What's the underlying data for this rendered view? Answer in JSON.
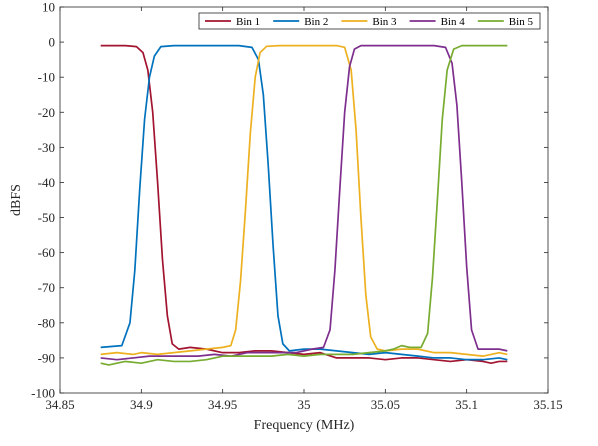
{
  "chart_data": {
    "type": "line",
    "xlabel": "Frequency (MHz)",
    "ylabel": "dBFS",
    "xlim": [
      34.85,
      35.15
    ],
    "ylim": [
      -100,
      10
    ],
    "xticks": [
      34.85,
      34.9,
      34.95,
      35,
      35.05,
      35.1,
      35.15
    ],
    "xtick_labels": [
      "34.85",
      "34.9",
      "34.95",
      "35",
      "35.05",
      "35.1",
      "35.15"
    ],
    "yticks": [
      -100,
      -90,
      -80,
      -70,
      -60,
      -50,
      -40,
      -30,
      -20,
      -10,
      0,
      10
    ],
    "ytick_labels": [
      "-100",
      "-90",
      "-80",
      "-70",
      "-60",
      "-50",
      "-40",
      "-30",
      "-20",
      "-10",
      "0",
      "10"
    ],
    "grid": false,
    "legend": {
      "placement": "top-right",
      "orientation": "horizontal"
    },
    "series": [
      {
        "name": "Bin 1",
        "color": "#A2142F",
        "points": [
          [
            34.875,
            -1
          ],
          [
            34.89,
            -1
          ],
          [
            34.897,
            -1.3
          ],
          [
            34.901,
            -3
          ],
          [
            34.904,
            -8
          ],
          [
            34.907,
            -20
          ],
          [
            34.91,
            -40
          ],
          [
            34.913,
            -62
          ],
          [
            34.916,
            -78
          ],
          [
            34.919,
            -86
          ],
          [
            34.923,
            -87.5
          ],
          [
            34.93,
            -87
          ],
          [
            34.94,
            -87.5
          ],
          [
            34.95,
            -88.5
          ],
          [
            34.96,
            -88.5
          ],
          [
            34.97,
            -88
          ],
          [
            34.98,
            -88
          ],
          [
            34.99,
            -88.5
          ],
          [
            35.0,
            -89
          ],
          [
            35.01,
            -88.5
          ],
          [
            35.02,
            -90
          ],
          [
            35.03,
            -90
          ],
          [
            35.04,
            -90
          ],
          [
            35.05,
            -90.5
          ],
          [
            35.06,
            -90
          ],
          [
            35.07,
            -90
          ],
          [
            35.08,
            -90.5
          ],
          [
            35.09,
            -91
          ],
          [
            35.1,
            -90.5
          ],
          [
            35.11,
            -91
          ],
          [
            35.115,
            -91.5
          ],
          [
            35.12,
            -91
          ],
          [
            35.125,
            -91
          ]
        ]
      },
      {
        "name": "Bin 2",
        "color": "#0072BD",
        "points": [
          [
            34.875,
            -87
          ],
          [
            34.888,
            -86.5
          ],
          [
            34.893,
            -80
          ],
          [
            34.896,
            -65
          ],
          [
            34.899,
            -42
          ],
          [
            34.902,
            -22
          ],
          [
            34.905,
            -10
          ],
          [
            34.908,
            -4
          ],
          [
            34.912,
            -1.3
          ],
          [
            34.92,
            -1
          ],
          [
            34.96,
            -1
          ],
          [
            34.968,
            -1.5
          ],
          [
            34.972,
            -5
          ],
          [
            34.975,
            -15
          ],
          [
            34.978,
            -35
          ],
          [
            34.981,
            -58
          ],
          [
            34.984,
            -78
          ],
          [
            34.987,
            -86
          ],
          [
            34.991,
            -88
          ],
          [
            35.0,
            -87.5
          ],
          [
            35.01,
            -87.5
          ],
          [
            35.02,
            -88
          ],
          [
            35.03,
            -88.5
          ],
          [
            35.04,
            -89
          ],
          [
            35.05,
            -88.5
          ],
          [
            35.06,
            -89
          ],
          [
            35.07,
            -89.5
          ],
          [
            35.08,
            -90
          ],
          [
            35.09,
            -90
          ],
          [
            35.1,
            -90.5
          ],
          [
            35.11,
            -90.5
          ],
          [
            35.12,
            -90
          ],
          [
            35.125,
            -90.5
          ]
        ]
      },
      {
        "name": "Bin 3",
        "color": "#EDB120",
        "points": [
          [
            34.875,
            -89
          ],
          [
            34.885,
            -88.5
          ],
          [
            34.895,
            -89
          ],
          [
            34.9,
            -88.5
          ],
          [
            34.91,
            -89
          ],
          [
            34.92,
            -88.5
          ],
          [
            34.93,
            -88
          ],
          [
            34.94,
            -87.5
          ],
          [
            34.95,
            -87
          ],
          [
            34.955,
            -86.5
          ],
          [
            34.958,
            -82
          ],
          [
            34.961,
            -68
          ],
          [
            34.964,
            -48
          ],
          [
            34.967,
            -26
          ],
          [
            34.97,
            -10
          ],
          [
            34.973,
            -3
          ],
          [
            34.977,
            -1.2
          ],
          [
            34.985,
            -1
          ],
          [
            35.02,
            -1
          ],
          [
            35.025,
            -1.5
          ],
          [
            35.029,
            -8
          ],
          [
            35.032,
            -25
          ],
          [
            35.035,
            -50
          ],
          [
            35.038,
            -72
          ],
          [
            35.041,
            -84
          ],
          [
            35.045,
            -87.5
          ],
          [
            35.05,
            -88
          ],
          [
            35.06,
            -87.5
          ],
          [
            35.07,
            -87.5
          ],
          [
            35.08,
            -88.5
          ],
          [
            35.09,
            -88.5
          ],
          [
            35.1,
            -89
          ],
          [
            35.11,
            -89.5
          ],
          [
            35.12,
            -88.5
          ],
          [
            35.125,
            -89
          ]
        ]
      },
      {
        "name": "Bin 4",
        "color": "#7E2F8E",
        "points": [
          [
            34.875,
            -90
          ],
          [
            34.885,
            -90.5
          ],
          [
            34.895,
            -90
          ],
          [
            34.905,
            -89.5
          ],
          [
            34.915,
            -89.5
          ],
          [
            34.925,
            -89.5
          ],
          [
            34.935,
            -89.5
          ],
          [
            34.945,
            -89
          ],
          [
            34.955,
            -89.5
          ],
          [
            34.965,
            -88.5
          ],
          [
            34.975,
            -88.5
          ],
          [
            34.985,
            -88.5
          ],
          [
            34.995,
            -88.5
          ],
          [
            35.005,
            -87.5
          ],
          [
            35.012,
            -87
          ],
          [
            35.016,
            -82
          ],
          [
            35.019,
            -65
          ],
          [
            35.022,
            -42
          ],
          [
            35.025,
            -20
          ],
          [
            35.028,
            -7
          ],
          [
            35.031,
            -2
          ],
          [
            35.035,
            -1
          ],
          [
            35.08,
            -1
          ],
          [
            35.087,
            -1.5
          ],
          [
            35.091,
            -6
          ],
          [
            35.094,
            -18
          ],
          [
            35.097,
            -40
          ],
          [
            35.1,
            -64
          ],
          [
            35.103,
            -82
          ],
          [
            35.107,
            -87.5
          ],
          [
            35.115,
            -87.5
          ],
          [
            35.12,
            -87.5
          ],
          [
            35.125,
            -88
          ]
        ]
      },
      {
        "name": "Bin 5",
        "color": "#77AC30",
        "points": [
          [
            34.875,
            -91.5
          ],
          [
            34.88,
            -92
          ],
          [
            34.89,
            -91
          ],
          [
            34.9,
            -91.5
          ],
          [
            34.91,
            -90.5
          ],
          [
            34.92,
            -91
          ],
          [
            34.93,
            -91
          ],
          [
            34.94,
            -90.5
          ],
          [
            34.95,
            -89.5
          ],
          [
            34.96,
            -89.5
          ],
          [
            34.97,
            -89.5
          ],
          [
            34.98,
            -89.5
          ],
          [
            34.99,
            -89
          ],
          [
            35.0,
            -89.5
          ],
          [
            35.01,
            -89
          ],
          [
            35.02,
            -89
          ],
          [
            35.03,
            -89
          ],
          [
            35.04,
            -88.5
          ],
          [
            35.05,
            -88
          ],
          [
            35.055,
            -87.5
          ],
          [
            35.06,
            -86.5
          ],
          [
            35.065,
            -87
          ],
          [
            35.072,
            -87
          ],
          [
            35.076,
            -83
          ],
          [
            35.079,
            -67
          ],
          [
            35.082,
            -45
          ],
          [
            35.085,
            -22
          ],
          [
            35.088,
            -8
          ],
          [
            35.092,
            -2
          ],
          [
            35.097,
            -1
          ],
          [
            35.125,
            -1
          ]
        ]
      }
    ]
  }
}
